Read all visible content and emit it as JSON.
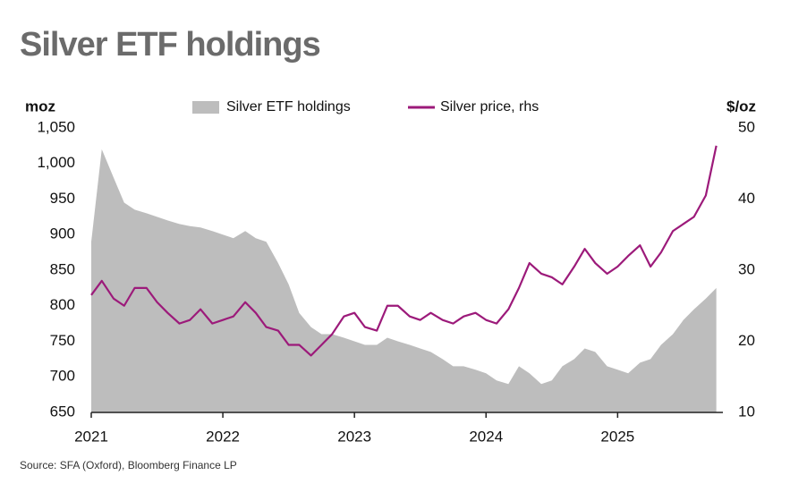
{
  "chart_data": {
    "type": "area-line",
    "title": "Silver ETF holdings",
    "y_label": "moz",
    "y2_label": "$/oz",
    "source": "Source: SFA (Oxford), Bloomberg Finance LP",
    "x": [
      2021,
      2021.08,
      2021.17,
      2021.25,
      2021.33,
      2021.42,
      2021.5,
      2021.58,
      2021.67,
      2021.75,
      2021.83,
      2021.92,
      2022,
      2022.08,
      2022.17,
      2022.25,
      2022.33,
      2022.42,
      2022.5,
      2022.58,
      2022.67,
      2022.75,
      2022.83,
      2022.92,
      2023,
      2023.08,
      2023.17,
      2023.25,
      2023.33,
      2023.42,
      2023.5,
      2023.58,
      2023.67,
      2023.75,
      2023.83,
      2023.92,
      2024,
      2024.08,
      2024.17,
      2024.25,
      2024.33,
      2024.42,
      2024.5,
      2024.58,
      2024.67,
      2024.75,
      2024.83,
      2024.92,
      2025,
      2025.08,
      2025.17,
      2025.25,
      2025.33,
      2025.42,
      2025.5,
      2025.58,
      2025.67,
      2025.75
    ],
    "series": [
      {
        "name": "Silver ETF holdings",
        "kind": "area",
        "color": "#bdbdbd",
        "values": [
          890,
          1020,
          980,
          945,
          935,
          930,
          925,
          920,
          915,
          912,
          910,
          905,
          900,
          895,
          905,
          895,
          890,
          860,
          830,
          790,
          770,
          760,
          760,
          755,
          750,
          745,
          745,
          755,
          750,
          745,
          740,
          735,
          725,
          715,
          715,
          710,
          705,
          695,
          690,
          715,
          705,
          690,
          695,
          715,
          725,
          740,
          735,
          715,
          710,
          705,
          720,
          725,
          745,
          760,
          780,
          795,
          810,
          825
        ]
      },
      {
        "name": "Silver price, rhs",
        "kind": "line",
        "axis": "y2",
        "color": "#9c1a7a",
        "values": [
          26.5,
          28.5,
          26,
          25,
          27.5,
          27.5,
          25.5,
          24,
          22.5,
          23,
          24.5,
          22.5,
          23,
          23.5,
          25.5,
          24,
          22,
          21.5,
          19.5,
          19.5,
          18,
          19.5,
          21,
          23.5,
          24,
          22,
          21.5,
          25,
          25,
          23.5,
          23,
          24,
          23,
          22.5,
          23.5,
          24,
          23,
          22.5,
          24.5,
          27.5,
          31,
          29.5,
          29,
          28,
          30.5,
          33,
          31,
          29.5,
          30.5,
          32,
          33.5,
          30.5,
          32.5,
          35.5,
          36.5,
          37.5,
          40.5,
          47.5
        ]
      }
    ],
    "xlim": [
      2021,
      2025.8
    ],
    "xticks": [
      2021,
      2022,
      2023,
      2024,
      2025
    ],
    "ylim": [
      650,
      1050
    ],
    "yticks": [
      650,
      700,
      750,
      800,
      850,
      900,
      950,
      {
        "value": 1000,
        "label": "1,000"
      },
      {
        "value": 1050,
        "label": "1,050"
      }
    ],
    "y2lim": [
      10,
      50
    ],
    "y2ticks": [
      10,
      20,
      30,
      40,
      50
    ]
  }
}
